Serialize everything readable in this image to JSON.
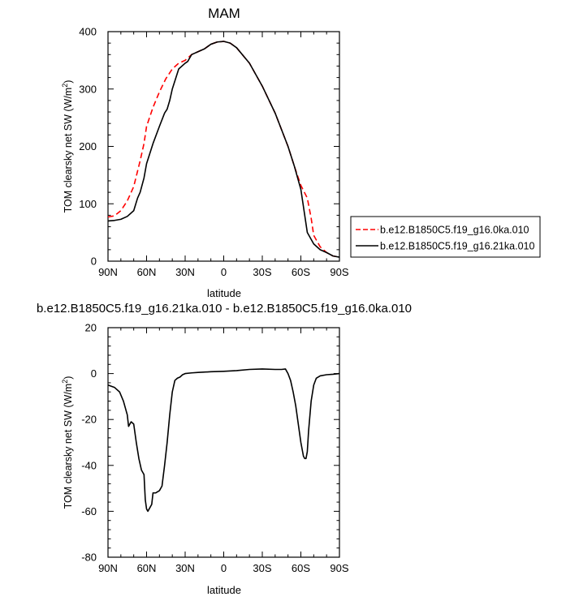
{
  "chart_data": [
    {
      "type": "line",
      "title": "MAM",
      "xlabel": "latitude",
      "ylabel_parts": [
        "TOM clearsky net SW (W/m",
        "2",
        ")"
      ],
      "ylim": [
        0,
        400
      ],
      "xlim": [
        90,
        -90
      ],
      "x_ticks": [
        90,
        60,
        30,
        0,
        -30,
        -60,
        -90
      ],
      "x_tick_labels": [
        "90N",
        "60N",
        "30N",
        "0",
        "30S",
        "60S",
        "90S"
      ],
      "y_ticks": [
        0,
        100,
        200,
        300,
        400
      ],
      "y_tick_labels": [
        "0",
        "100",
        "200",
        "300",
        "400"
      ],
      "legend_position": "right",
      "grid": false,
      "series": [
        {
          "name": "b.e12.B1850C5.f19_g16.0ka.010",
          "color": "#ff0000",
          "dash": "dashed",
          "x": [
            90,
            85,
            80,
            75,
            70,
            65,
            62,
            60,
            55,
            50,
            45,
            40,
            35,
            30,
            25,
            20,
            15,
            10,
            5,
            0,
            -5,
            -10,
            -20,
            -30,
            -40,
            -50,
            -55,
            -60,
            -65,
            -68,
            -70,
            -75,
            -80,
            -85,
            -90
          ],
          "y": [
            77,
            79,
            88,
            105,
            130,
            175,
            205,
            235,
            268,
            295,
            318,
            335,
            345,
            350,
            360,
            365,
            370,
            378,
            382,
            383,
            380,
            372,
            345,
            305,
            258,
            200,
            165,
            132,
            110,
            75,
            45,
            25,
            15,
            9,
            7
          ]
        },
        {
          "name": "b.e12.B1850C5.f19_g16.21ka.010",
          "color": "#000000",
          "dash": "solid",
          "x": [
            90,
            85,
            80,
            75,
            70,
            67,
            65,
            62,
            60,
            55,
            50,
            46,
            44,
            42,
            40,
            35,
            30,
            28,
            25,
            20,
            15,
            10,
            5,
            0,
            -5,
            -10,
            -20,
            -30,
            -40,
            -50,
            -55,
            -60,
            -63,
            -65,
            -70,
            -75,
            -80,
            -85,
            -90
          ],
          "y": [
            70,
            71,
            73,
            78,
            88,
            110,
            120,
            145,
            170,
            205,
            235,
            258,
            265,
            280,
            300,
            335,
            345,
            348,
            360,
            365,
            370,
            378,
            382,
            383,
            380,
            372,
            345,
            305,
            258,
            200,
            165,
            125,
            80,
            50,
            30,
            20,
            15,
            9,
            7
          ]
        }
      ]
    },
    {
      "type": "line",
      "title": "b.e12.B1850C5.f19_g16.21ka.010 - b.e12.B1850C5.f19_g16.0ka.010",
      "xlabel": "latitude",
      "ylabel_parts": [
        "TOM clearsky net SW (W/m",
        "2",
        ")"
      ],
      "ylim": [
        -80,
        20
      ],
      "xlim": [
        90,
        -90
      ],
      "x_ticks": [
        90,
        60,
        30,
        0,
        -30,
        -60,
        -90
      ],
      "x_tick_labels": [
        "90N",
        "60N",
        "30N",
        "0",
        "30S",
        "60S",
        "90S"
      ],
      "y_ticks": [
        -80,
        -60,
        -40,
        -20,
        0,
        20
      ],
      "y_tick_labels": [
        "-80",
        "-60",
        "-40",
        "-20",
        "0",
        "20"
      ],
      "grid": false,
      "series": [
        {
          "color": "#000000",
          "dash": "solid",
          "x": [
            90,
            85,
            81,
            78,
            75,
            74,
            72,
            70,
            68,
            66,
            64,
            62,
            61,
            60,
            59,
            58,
            56,
            55,
            53,
            50,
            48,
            46,
            44,
            42,
            40,
            38,
            36,
            34,
            32,
            30,
            25,
            20,
            10,
            0,
            -10,
            -20,
            -30,
            -40,
            -45,
            -48,
            -50,
            -52,
            -54,
            -56,
            -58,
            -60,
            -62,
            -63,
            -64,
            -65,
            -66,
            -68,
            -70,
            -72,
            -75,
            -80,
            -85,
            -90
          ],
          "y": [
            -5,
            -6,
            -8,
            -12,
            -18,
            -23,
            -21,
            -22,
            -30,
            -37,
            -42,
            -44,
            -55,
            -59,
            -60,
            -59,
            -57,
            -52,
            -52,
            -51,
            -49,
            -40,
            -30,
            -18,
            -8,
            -3,
            -2,
            -1.5,
            -0.5,
            0,
            0.3,
            0.5,
            0.8,
            1,
            1.3,
            1.8,
            2,
            1.8,
            1.8,
            2,
            0,
            -3,
            -8,
            -14,
            -22,
            -30,
            -36,
            -37,
            -37,
            -34,
            -25,
            -12,
            -5,
            -2,
            -1,
            -0.5,
            -0.3,
            0
          ]
        }
      ]
    }
  ]
}
